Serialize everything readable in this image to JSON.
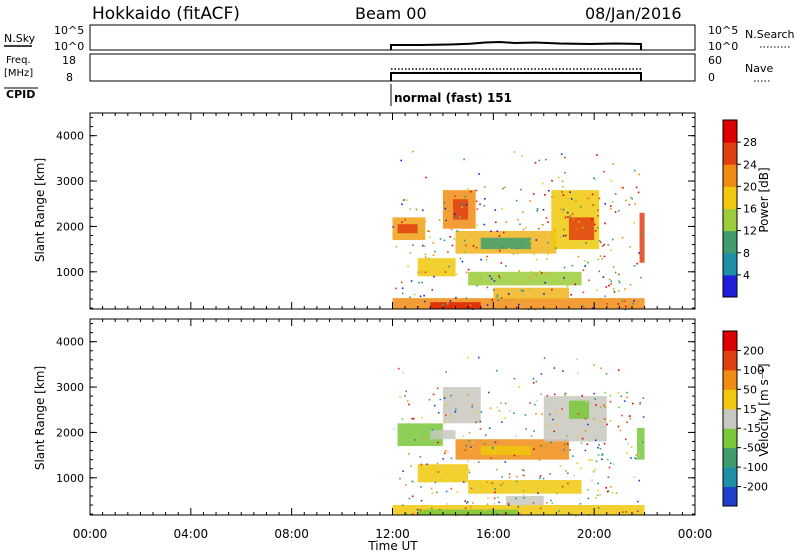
{
  "header": {
    "station": "Hokkaido (fitACF)",
    "beam": "Beam 00",
    "date": "08/Jan/2016"
  },
  "strips": {
    "nsky": {
      "label": "N.Sky",
      "ticks_left": [
        "10^5",
        "10^0"
      ],
      "ticks_right": [
        "10^5",
        "10^0"
      ],
      "right_label": "N.Search"
    },
    "freq": {
      "label_line1": "Freq.",
      "label_line2": "[MHz]",
      "ticks_left": [
        "18",
        "8"
      ],
      "ticks_right": [
        "60",
        "0"
      ],
      "right_label": "Nave"
    },
    "cpid": {
      "label": "CPID",
      "mode_text": "normal (fast) 151"
    }
  },
  "chart_data": [
    {
      "type": "heatmap",
      "name": "power",
      "xlabel": "",
      "ylabel": "Slant Range [km]",
      "xlim": [
        0,
        24
      ],
      "ylim": [
        180,
        4500
      ],
      "yticks": [
        1000,
        2000,
        3000,
        4000
      ],
      "colorbar": {
        "label": "Power [dB]",
        "ticks": [
          "4",
          "8",
          "12",
          "16",
          "20",
          "24",
          "28"
        ],
        "colors": [
          "#1f1fd9",
          "#1f8fa8",
          "#3f9c6c",
          "#9ccc3a",
          "#f0c80c",
          "#f08c14",
          "#e04010",
          "#dd0000"
        ]
      },
      "patches": [
        {
          "t0": 12.0,
          "t1": 22.0,
          "r0": 180,
          "r1": 420,
          "color": "#f08c14"
        },
        {
          "t0": 13.5,
          "t1": 15.5,
          "r0": 180,
          "r1": 330,
          "color": "#dd2000"
        },
        {
          "t0": 12.0,
          "t1": 13.3,
          "r0": 1700,
          "r1": 2200,
          "color": "#f0a014"
        },
        {
          "t0": 12.2,
          "t1": 13.0,
          "r0": 1850,
          "r1": 2050,
          "color": "#e04010"
        },
        {
          "t0": 14.0,
          "t1": 15.3,
          "r0": 1950,
          "r1": 2800,
          "color": "#f08c14"
        },
        {
          "t0": 14.4,
          "t1": 15.0,
          "r0": 2150,
          "r1": 2600,
          "color": "#e04010"
        },
        {
          "t0": 14.5,
          "t1": 18.5,
          "r0": 1400,
          "r1": 1900,
          "color": "#f0b41c"
        },
        {
          "t0": 15.5,
          "t1": 17.5,
          "r0": 1500,
          "r1": 1750,
          "color": "#3f9c6c"
        },
        {
          "t0": 18.3,
          "t1": 20.2,
          "r0": 1500,
          "r1": 2800,
          "color": "#f0c80c"
        },
        {
          "t0": 19.0,
          "t1": 20.0,
          "r0": 1700,
          "r1": 2200,
          "color": "#e04010"
        },
        {
          "t0": 13.0,
          "t1": 14.5,
          "r0": 900,
          "r1": 1300,
          "color": "#f0c80c"
        },
        {
          "t0": 15.0,
          "t1": 19.5,
          "r0": 700,
          "r1": 1000,
          "color": "#9ccc3a"
        },
        {
          "t0": 16.0,
          "t1": 19.0,
          "r0": 400,
          "r1": 650,
          "color": "#f0b41c"
        },
        {
          "t0": 21.8,
          "t1": 22.0,
          "r0": 1200,
          "r1": 2300,
          "color": "#e04010"
        }
      ]
    },
    {
      "type": "heatmap",
      "name": "velocity",
      "xlabel": "Time UT",
      "ylabel": "Slant Range [km]",
      "xlim": [
        0,
        24
      ],
      "ylim": [
        180,
        4500
      ],
      "xticks": [
        "00:00",
        "04:00",
        "08:00",
        "12:00",
        "16:00",
        "20:00",
        "00:00"
      ],
      "yticks": [
        1000,
        2000,
        3000,
        4000
      ],
      "colorbar": {
        "label": "Velocity [m s⁻¹]",
        "ticks": [
          "200",
          "100",
          "50",
          "15",
          "-15",
          "-50",
          "-100",
          "-200"
        ],
        "colors": [
          "#1f3fcc",
          "#1f8fa8",
          "#3f9c6c",
          "#7ac83a",
          "#c8c8c0",
          "#f0c80c",
          "#f08c14",
          "#e04010",
          "#dd0000"
        ]
      },
      "patches": [
        {
          "t0": 12.0,
          "t1": 22.0,
          "r0": 180,
          "r1": 400,
          "color": "#f0c80c"
        },
        {
          "t0": 13.0,
          "t1": 17.0,
          "r0": 180,
          "r1": 300,
          "color": "#7ac83a"
        },
        {
          "t0": 12.2,
          "t1": 14.0,
          "r0": 1700,
          "r1": 2200,
          "color": "#7ac83a"
        },
        {
          "t0": 13.5,
          "t1": 14.5,
          "r0": 1850,
          "r1": 2050,
          "color": "#c8c8c0"
        },
        {
          "t0": 14.0,
          "t1": 15.5,
          "r0": 2200,
          "r1": 3000,
          "color": "#c8c8c0"
        },
        {
          "t0": 14.5,
          "t1": 19.0,
          "r0": 1400,
          "r1": 1850,
          "color": "#f08c14"
        },
        {
          "t0": 15.5,
          "t1": 17.5,
          "r0": 1500,
          "r1": 1700,
          "color": "#f0c80c"
        },
        {
          "t0": 18.0,
          "t1": 20.5,
          "r0": 1800,
          "r1": 2800,
          "color": "#c8c8c0"
        },
        {
          "t0": 19.0,
          "t1": 19.8,
          "r0": 2300,
          "r1": 2700,
          "color": "#7ac83a"
        },
        {
          "t0": 13.0,
          "t1": 15.0,
          "r0": 900,
          "r1": 1300,
          "color": "#f0c80c"
        },
        {
          "t0": 15.0,
          "t1": 19.5,
          "r0": 650,
          "r1": 950,
          "color": "#f0c80c"
        },
        {
          "t0": 16.5,
          "t1": 18.0,
          "r0": 400,
          "r1": 600,
          "color": "#c8c8c0"
        },
        {
          "t0": 21.7,
          "t1": 22.0,
          "r0": 1400,
          "r1": 2100,
          "color": "#7ac83a"
        }
      ]
    }
  ]
}
